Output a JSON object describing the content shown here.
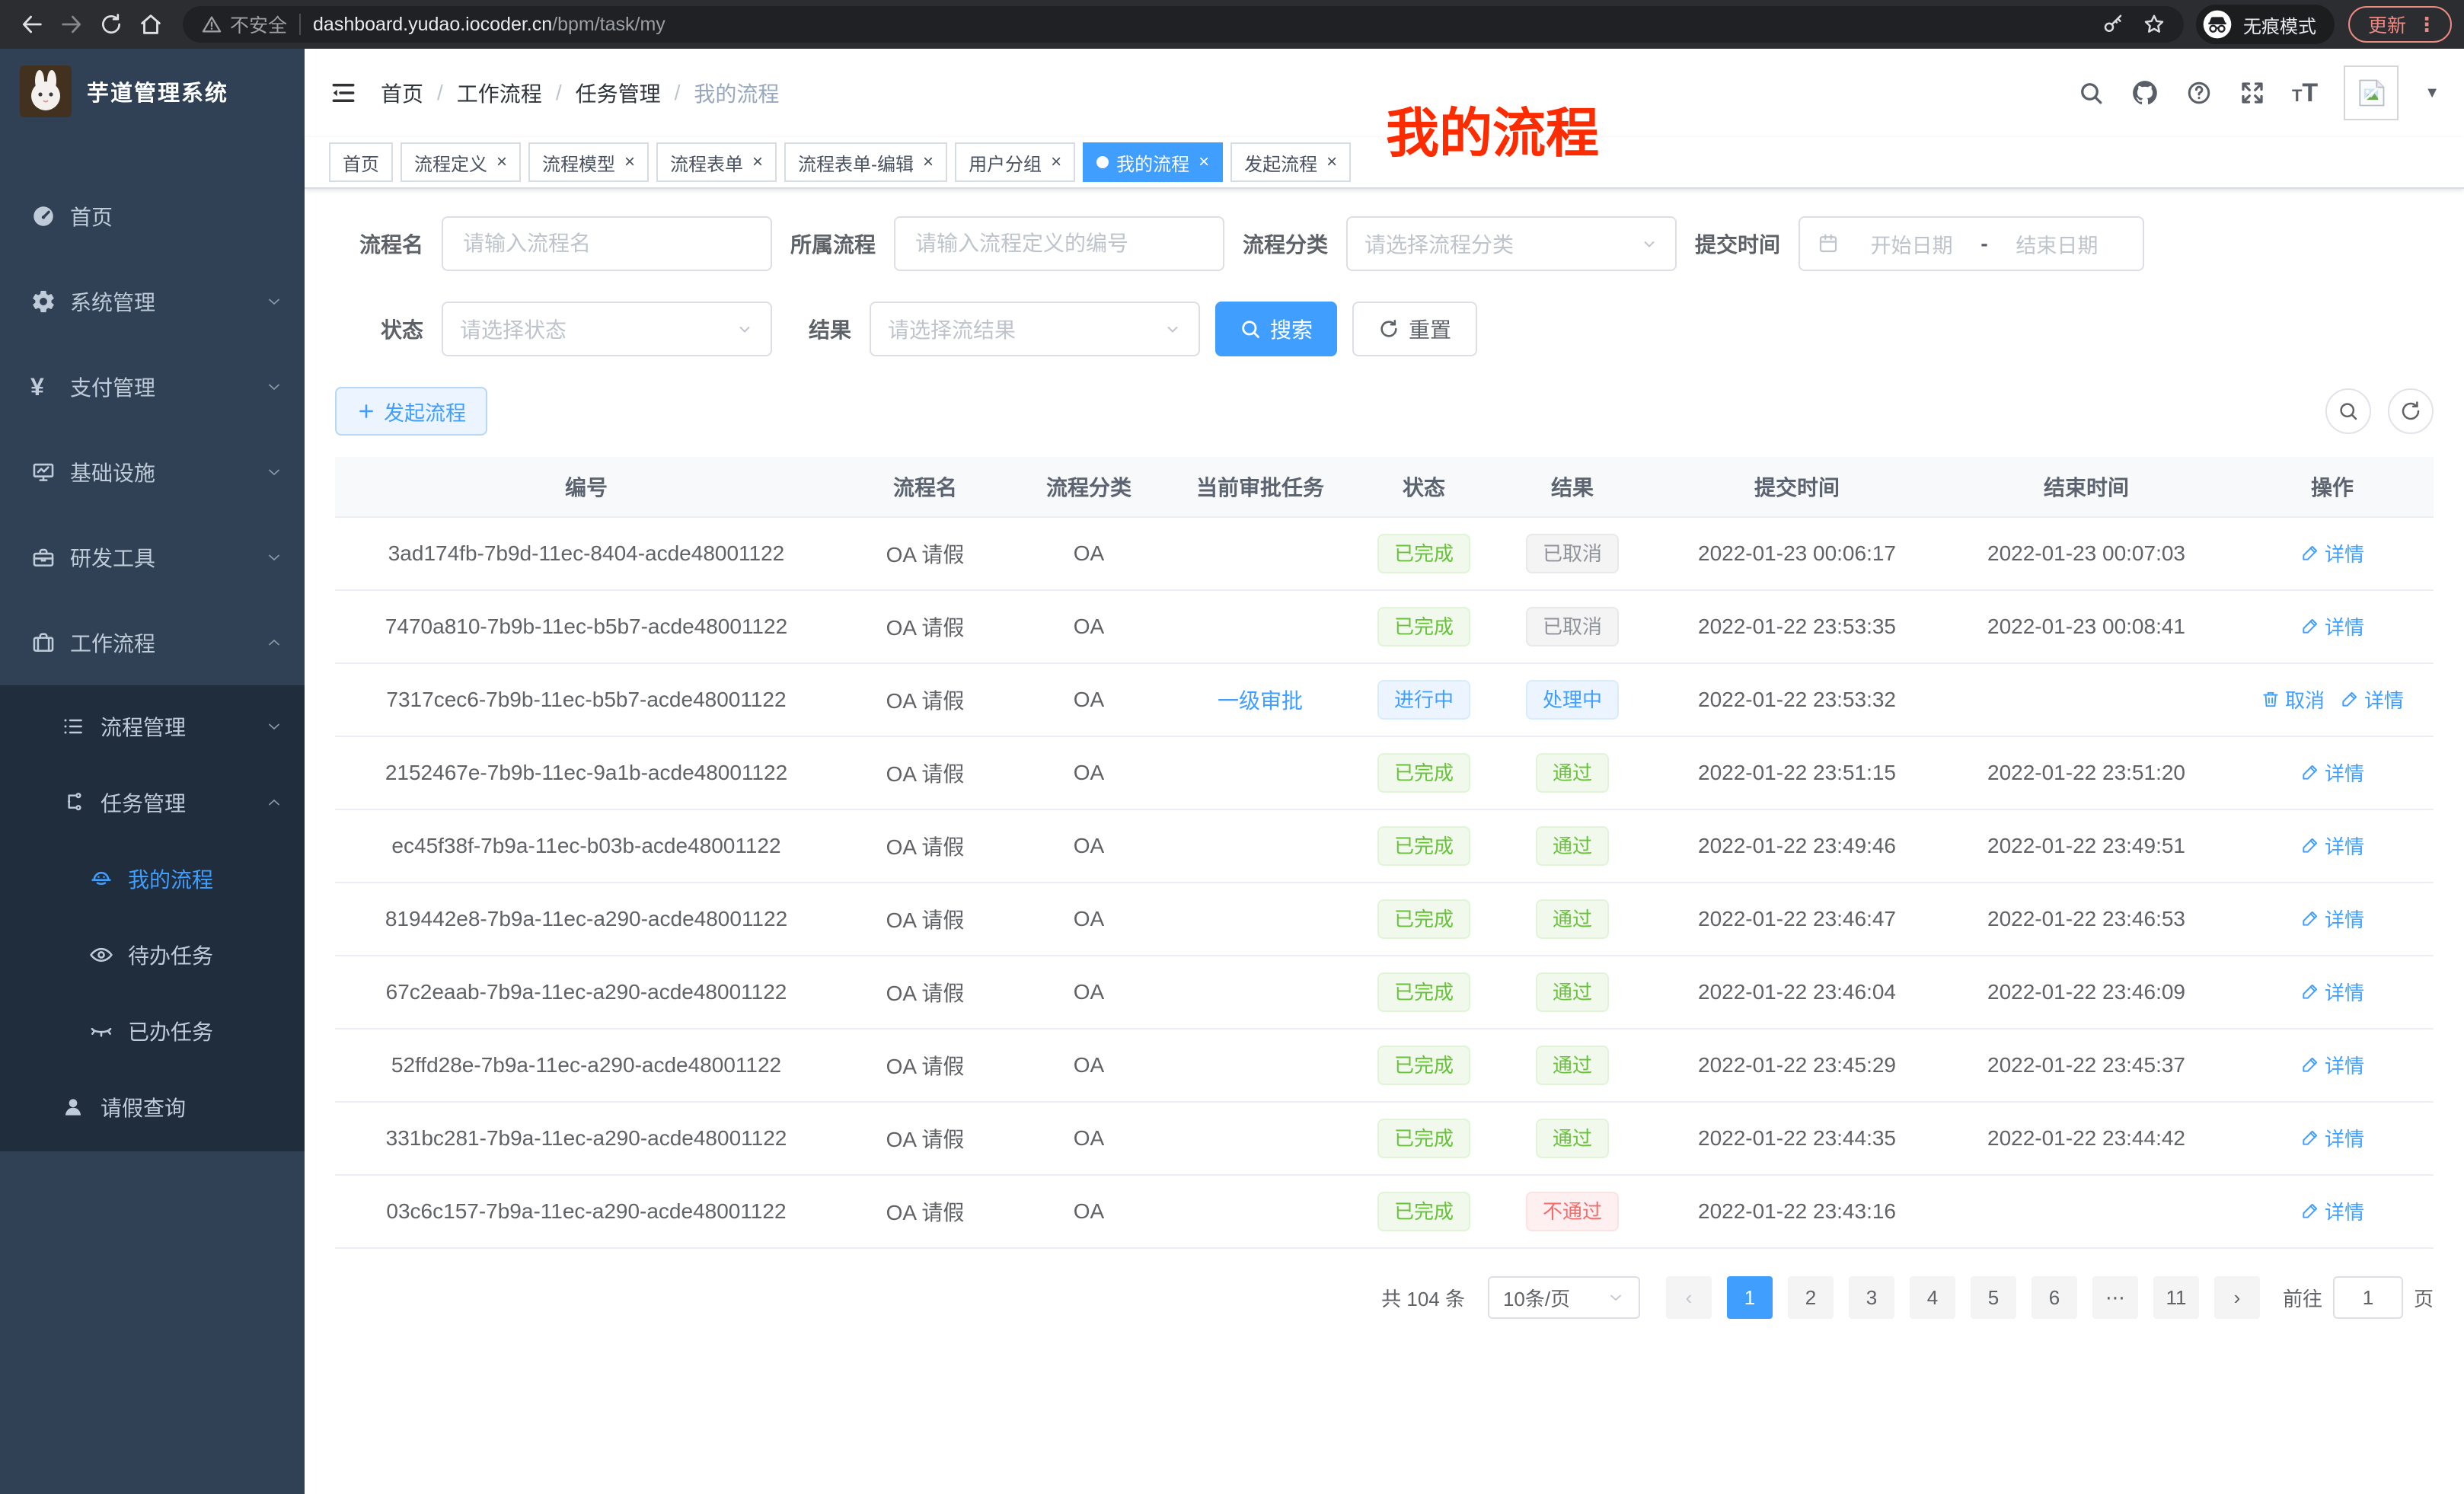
{
  "browser": {
    "security_label": "不安全",
    "url_host": "dashboard.yudao.iocoder.cn",
    "url_path": "/bpm/task/my",
    "incognito_label": "无痕模式",
    "update_label": "更新"
  },
  "sidebar": {
    "title": "芋道管理系统",
    "menu": [
      {
        "key": "home",
        "label": "首页",
        "icon": "dashboard-icon",
        "level": 1
      },
      {
        "key": "system",
        "label": "系统管理",
        "icon": "gear-icon",
        "level": 1,
        "chevron": "down"
      },
      {
        "key": "payment",
        "label": "支付管理",
        "icon": "yen-icon",
        "level": 1,
        "chevron": "down"
      },
      {
        "key": "infra",
        "label": "基础设施",
        "icon": "monitor-icon",
        "level": 1,
        "chevron": "down"
      },
      {
        "key": "devtools",
        "label": "研发工具",
        "icon": "toolbox-icon",
        "level": 1,
        "chevron": "down"
      },
      {
        "key": "workflow",
        "label": "工作流程",
        "icon": "briefcase-icon",
        "level": 1,
        "chevron": "up"
      },
      {
        "key": "process-mgmt",
        "label": "流程管理",
        "icon": "list-icon",
        "level": 2,
        "chevron": "down"
      },
      {
        "key": "task-mgmt",
        "label": "任务管理",
        "icon": "tree-icon",
        "level": 2,
        "chevron": "up"
      },
      {
        "key": "my-process",
        "label": "我的流程",
        "icon": "robot-icon",
        "level": 3,
        "active": true
      },
      {
        "key": "todo-tasks",
        "label": "待办任务",
        "icon": "eye-icon",
        "level": 3
      },
      {
        "key": "done-tasks",
        "label": "已办任务",
        "icon": "eye-closed-icon",
        "level": 3
      },
      {
        "key": "leave-query",
        "label": "请假查询",
        "icon": "user-icon",
        "level": 2
      }
    ]
  },
  "header": {
    "breadcrumb": [
      {
        "label": "首页"
      },
      {
        "label": "工作流程"
      },
      {
        "label": "任务管理"
      },
      {
        "label": "我的流程",
        "current": true
      }
    ],
    "annotation": "我的流程"
  },
  "tabs": [
    {
      "key": "home",
      "label": "首页",
      "closable": false
    },
    {
      "key": "process-definition",
      "label": "流程定义",
      "closable": true
    },
    {
      "key": "process-model",
      "label": "流程模型",
      "closable": true
    },
    {
      "key": "process-form",
      "label": "流程表单",
      "closable": true
    },
    {
      "key": "process-form-edit",
      "label": "流程表单-编辑",
      "closable": true
    },
    {
      "key": "user-group",
      "label": "用户分组",
      "closable": true
    },
    {
      "key": "my-process",
      "label": "我的流程",
      "closable": true,
      "active": true
    },
    {
      "key": "start-process",
      "label": "发起流程",
      "closable": true
    }
  ],
  "filters": {
    "name_label": "流程名",
    "name_placeholder": "请输入流程名",
    "definition_label": "所属流程",
    "definition_placeholder": "请输入流程定义的编号",
    "category_label": "流程分类",
    "category_placeholder": "请选择流程分类",
    "submit_time_label": "提交时间",
    "start_date_placeholder": "开始日期",
    "date_separator": "-",
    "end_date_placeholder": "结束日期",
    "status_label": "状态",
    "status_placeholder": "请选择状态",
    "result_label": "结果",
    "result_placeholder": "请选择流结果",
    "search_label": "搜索",
    "reset_label": "重置"
  },
  "toolbar": {
    "create_label": "发起流程"
  },
  "table": {
    "columns": [
      "编号",
      "流程名",
      "流程分类",
      "当前审批任务",
      "状态",
      "结果",
      "提交时间",
      "结束时间",
      "操作"
    ],
    "rows": [
      {
        "id": "3ad174fb-7b9d-11ec-8404-acde48001122",
        "name": "OA 请假",
        "category": "OA",
        "task": "",
        "status": {
          "label": "已完成",
          "type": "success"
        },
        "result": {
          "label": "已取消",
          "type": "info"
        },
        "submit_time": "2022-01-23 00:06:17",
        "end_time": "2022-01-23 00:07:03",
        "actions": [
          {
            "key": "detail",
            "label": "详情"
          }
        ]
      },
      {
        "id": "7470a810-7b9b-11ec-b5b7-acde48001122",
        "name": "OA 请假",
        "category": "OA",
        "task": "",
        "status": {
          "label": "已完成",
          "type": "success"
        },
        "result": {
          "label": "已取消",
          "type": "info"
        },
        "submit_time": "2022-01-22 23:53:35",
        "end_time": "2022-01-23 00:08:41",
        "actions": [
          {
            "key": "detail",
            "label": "详情"
          }
        ]
      },
      {
        "id": "7317cec6-7b9b-11ec-b5b7-acde48001122",
        "name": "OA 请假",
        "category": "OA",
        "task": "一级审批",
        "status": {
          "label": "进行中",
          "type": "primary"
        },
        "result": {
          "label": "处理中",
          "type": "primary"
        },
        "submit_time": "2022-01-22 23:53:32",
        "end_time": "",
        "actions": [
          {
            "key": "cancel",
            "label": "取消"
          },
          {
            "key": "detail",
            "label": "详情"
          }
        ]
      },
      {
        "id": "2152467e-7b9b-11ec-9a1b-acde48001122",
        "name": "OA 请假",
        "category": "OA",
        "task": "",
        "status": {
          "label": "已完成",
          "type": "success"
        },
        "result": {
          "label": "通过",
          "type": "success"
        },
        "submit_time": "2022-01-22 23:51:15",
        "end_time": "2022-01-22 23:51:20",
        "actions": [
          {
            "key": "detail",
            "label": "详情"
          }
        ]
      },
      {
        "id": "ec45f38f-7b9a-11ec-b03b-acde48001122",
        "name": "OA 请假",
        "category": "OA",
        "task": "",
        "status": {
          "label": "已完成",
          "type": "success"
        },
        "result": {
          "label": "通过",
          "type": "success"
        },
        "submit_time": "2022-01-22 23:49:46",
        "end_time": "2022-01-22 23:49:51",
        "actions": [
          {
            "key": "detail",
            "label": "详情"
          }
        ]
      },
      {
        "id": "819442e8-7b9a-11ec-a290-acde48001122",
        "name": "OA 请假",
        "category": "OA",
        "task": "",
        "status": {
          "label": "已完成",
          "type": "success"
        },
        "result": {
          "label": "通过",
          "type": "success"
        },
        "submit_time": "2022-01-22 23:46:47",
        "end_time": "2022-01-22 23:46:53",
        "actions": [
          {
            "key": "detail",
            "label": "详情"
          }
        ]
      },
      {
        "id": "67c2eaab-7b9a-11ec-a290-acde48001122",
        "name": "OA 请假",
        "category": "OA",
        "task": "",
        "status": {
          "label": "已完成",
          "type": "success"
        },
        "result": {
          "label": "通过",
          "type": "success"
        },
        "submit_time": "2022-01-22 23:46:04",
        "end_time": "2022-01-22 23:46:09",
        "actions": [
          {
            "key": "detail",
            "label": "详情"
          }
        ]
      },
      {
        "id": "52ffd28e-7b9a-11ec-a290-acde48001122",
        "name": "OA 请假",
        "category": "OA",
        "task": "",
        "status": {
          "label": "已完成",
          "type": "success"
        },
        "result": {
          "label": "通过",
          "type": "success"
        },
        "submit_time": "2022-01-22 23:45:29",
        "end_time": "2022-01-22 23:45:37",
        "actions": [
          {
            "key": "detail",
            "label": "详情"
          }
        ]
      },
      {
        "id": "331bc281-7b9a-11ec-a290-acde48001122",
        "name": "OA 请假",
        "category": "OA",
        "task": "",
        "status": {
          "label": "已完成",
          "type": "success"
        },
        "result": {
          "label": "通过",
          "type": "success"
        },
        "submit_time": "2022-01-22 23:44:35",
        "end_time": "2022-01-22 23:44:42",
        "actions": [
          {
            "key": "detail",
            "label": "详情"
          }
        ]
      },
      {
        "id": "03c6c157-7b9a-11ec-a290-acde48001122",
        "name": "OA 请假",
        "category": "OA",
        "task": "",
        "status": {
          "label": "已完成",
          "type": "success"
        },
        "result": {
          "label": "不通过",
          "type": "danger"
        },
        "submit_time": "2022-01-22 23:43:16",
        "end_time": "",
        "actions": [
          {
            "key": "detail",
            "label": "详情"
          }
        ]
      }
    ]
  },
  "pagination": {
    "total_label": "共 104 条",
    "page_size_label": "10条/页",
    "prev_icon": "‹",
    "next_icon": "›",
    "pages": [
      "1",
      "2",
      "3",
      "4",
      "5",
      "6",
      "⋯",
      "11"
    ],
    "active_page": "1",
    "goto_label": "前往",
    "goto_value": "1",
    "goto_unit": "页"
  },
  "colors": {
    "accent": "#409eff",
    "sidebar_bg": "#304156",
    "submenu_bg": "#1f2d3d",
    "annotation_red": "#fd2b00",
    "success": "#67c23a",
    "info": "#909399",
    "danger": "#f56c6c",
    "update_button_red": "#ec8983"
  }
}
